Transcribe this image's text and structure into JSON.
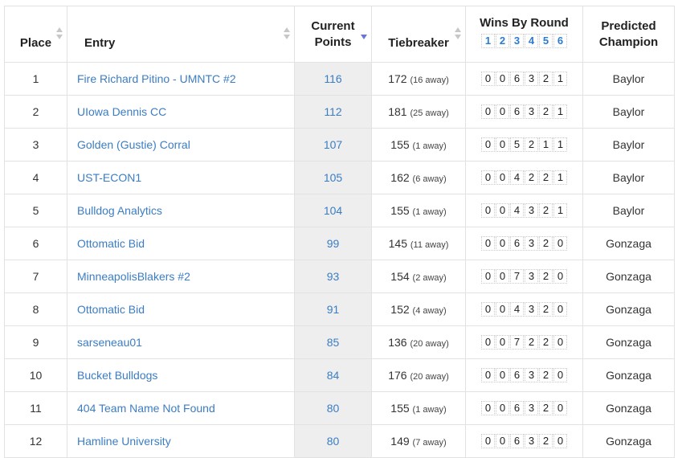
{
  "headers": {
    "place": "Place",
    "entry": "Entry",
    "points_line1": "Current",
    "points_line2": "Points",
    "tiebreaker": "Tiebreaker",
    "wins": "Wins By Round",
    "rounds": [
      "1",
      "2",
      "3",
      "4",
      "5",
      "6"
    ],
    "champion_line1": "Predicted",
    "champion_line2": "Champion"
  },
  "sort": {
    "column": "Current Points",
    "direction": "descending",
    "active_color": "#6a74d8"
  },
  "colors": {
    "link": "#3b7dc4",
    "points_bg": "#eeeeee"
  },
  "rows": [
    {
      "place": "1",
      "entry": "Fire Richard Pitino - UMNTC #2",
      "points": "116",
      "tiebreaker": "172",
      "away": "(16 away)",
      "wins": [
        "0",
        "0",
        "6",
        "3",
        "2",
        "1"
      ],
      "champion": "Baylor"
    },
    {
      "place": "2",
      "entry": "UIowa Dennis CC",
      "points": "112",
      "tiebreaker": "181",
      "away": "(25 away)",
      "wins": [
        "0",
        "0",
        "6",
        "3",
        "2",
        "1"
      ],
      "champion": "Baylor"
    },
    {
      "place": "3",
      "entry": "Golden (Gustie) Corral",
      "points": "107",
      "tiebreaker": "155",
      "away": "(1 away)",
      "wins": [
        "0",
        "0",
        "5",
        "2",
        "1",
        "1"
      ],
      "champion": "Baylor"
    },
    {
      "place": "4",
      "entry": "UST-ECON1",
      "points": "105",
      "tiebreaker": "162",
      "away": "(6 away)",
      "wins": [
        "0",
        "0",
        "4",
        "2",
        "2",
        "1"
      ],
      "champion": "Baylor"
    },
    {
      "place": "5",
      "entry": "Bulldog Analytics",
      "points": "104",
      "tiebreaker": "155",
      "away": "(1 away)",
      "wins": [
        "0",
        "0",
        "4",
        "3",
        "2",
        "1"
      ],
      "champion": "Baylor"
    },
    {
      "place": "6",
      "entry": "Ottomatic Bid",
      "points": "99",
      "tiebreaker": "145",
      "away": "(11 away)",
      "wins": [
        "0",
        "0",
        "6",
        "3",
        "2",
        "0"
      ],
      "champion": "Gonzaga"
    },
    {
      "place": "7",
      "entry": "MinneapolisBlakers #2",
      "points": "93",
      "tiebreaker": "154",
      "away": "(2 away)",
      "wins": [
        "0",
        "0",
        "7",
        "3",
        "2",
        "0"
      ],
      "champion": "Gonzaga"
    },
    {
      "place": "8",
      "entry": "Ottomatic Bid",
      "points": "91",
      "tiebreaker": "152",
      "away": "(4 away)",
      "wins": [
        "0",
        "0",
        "4",
        "3",
        "2",
        "0"
      ],
      "champion": "Gonzaga"
    },
    {
      "place": "9",
      "entry": "sarseneau01",
      "points": "85",
      "tiebreaker": "136",
      "away": "(20 away)",
      "wins": [
        "0",
        "0",
        "7",
        "2",
        "2",
        "0"
      ],
      "champion": "Gonzaga"
    },
    {
      "place": "10",
      "entry": "Bucket Bulldogs",
      "points": "84",
      "tiebreaker": "176",
      "away": "(20 away)",
      "wins": [
        "0",
        "0",
        "6",
        "3",
        "2",
        "0"
      ],
      "champion": "Gonzaga"
    },
    {
      "place": "11",
      "entry": "404 Team Name Not Found",
      "points": "80",
      "tiebreaker": "155",
      "away": "(1 away)",
      "wins": [
        "0",
        "0",
        "6",
        "3",
        "2",
        "0"
      ],
      "champion": "Gonzaga"
    },
    {
      "place": "12",
      "entry": "Hamline University",
      "points": "80",
      "tiebreaker": "149",
      "away": "(7 away)",
      "wins": [
        "0",
        "0",
        "6",
        "3",
        "2",
        "0"
      ],
      "champion": "Gonzaga"
    }
  ]
}
